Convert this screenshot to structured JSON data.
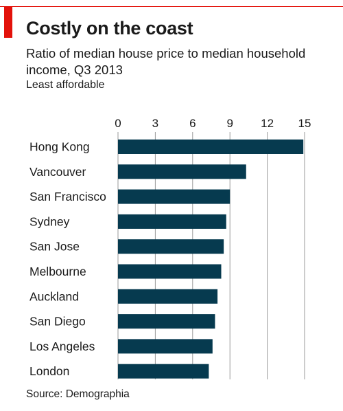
{
  "header": {
    "title": "Costly on the coast",
    "subtitle": "Ratio of median house price to median household income, Q3 2013",
    "note": "Least affordable"
  },
  "footer": {
    "source": "Source: Demographia"
  },
  "colors": {
    "accent": "#e3120b",
    "bar": "#063a4f",
    "grid": "#9a9a9a"
  },
  "chart_data": {
    "type": "bar",
    "orientation": "horizontal",
    "categories": [
      "Hong Kong",
      "Vancouver",
      "San Francisco",
      "Sydney",
      "San Jose",
      "Melbourne",
      "Auckland",
      "San Diego",
      "Los Angeles",
      "London"
    ],
    "values": [
      14.9,
      10.3,
      9.0,
      8.7,
      8.5,
      8.3,
      8.0,
      7.8,
      7.6,
      7.3
    ],
    "xlim": [
      0,
      15
    ],
    "ticks": [
      0,
      3,
      6,
      9,
      12,
      15
    ],
    "tick_labels": [
      "0",
      "3",
      "6",
      "9",
      "12",
      "15"
    ],
    "axis_position": "top",
    "grid": true
  }
}
